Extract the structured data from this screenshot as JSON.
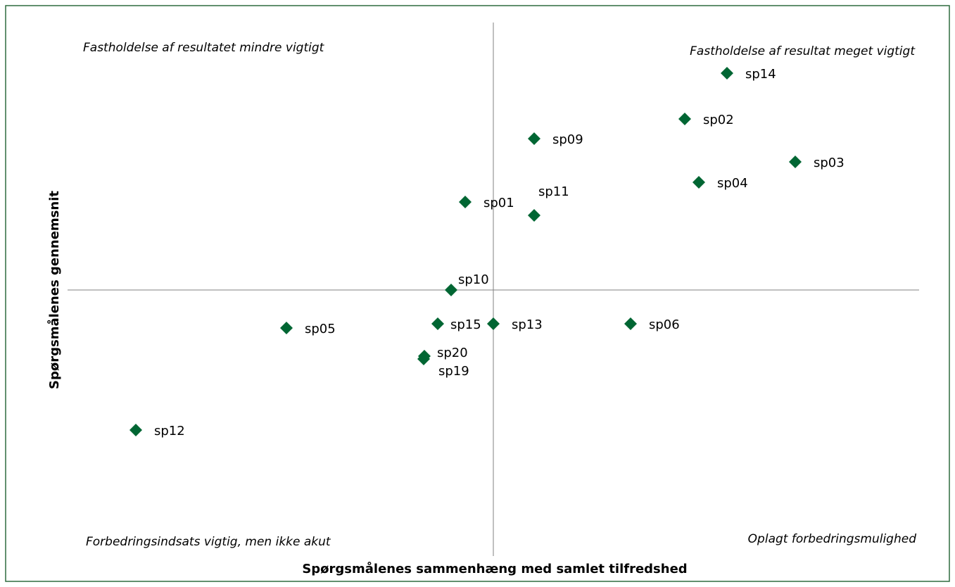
{
  "chart_data": {
    "type": "scatter",
    "x_label": "Spørgsmålenes sammenhæng med samlet tilfredshed",
    "y_label": "Spørgsmålenes gennemsnit",
    "annotations": [
      "Fastholdelse af resultatet mindre vigtigt",
      "Fastholdelse af resultat meget vigtigt",
      "Forbedringsindsats vigtig, men ikke akut",
      "Oplagt forbedringsmulighed"
    ],
    "color": "#006633",
    "xlim": [
      -6.05,
      6.05
    ],
    "ylim": [
      -3.78,
      3.8
    ],
    "labels": [
      "sp14",
      "sp02",
      "sp09",
      "sp03",
      "sp04",
      "sp01",
      "sp11",
      "sp10",
      "sp15",
      "sp13",
      "sp06",
      "sp05",
      "sp20",
      "sp19",
      "sp12"
    ],
    "x": [
      3.32,
      2.72,
      0.58,
      4.29,
      2.92,
      -0.4,
      0.58,
      -0.6,
      -0.79,
      0,
      1.95,
      -2.94,
      -0.98,
      -0.99,
      -5.08
    ],
    "y": [
      3.08,
      2.43,
      2.15,
      1.82,
      1.53,
      1.25,
      1.06,
      0,
      -0.48,
      -0.48,
      -0.48,
      -0.54,
      -0.94,
      -0.98,
      -1.99
    ]
  }
}
